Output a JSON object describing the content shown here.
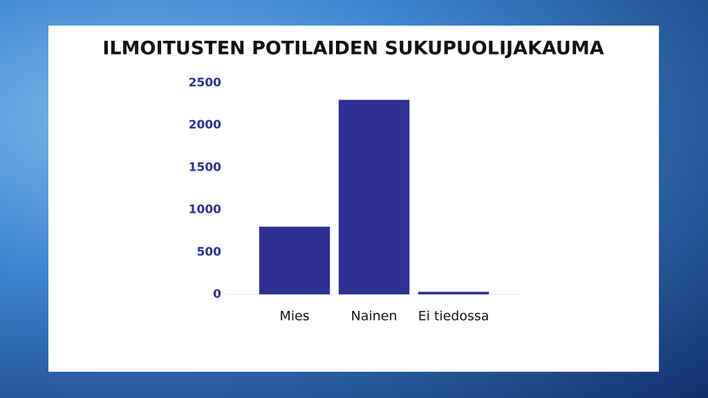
{
  "chart_data": {
    "type": "bar",
    "title": "ILMOITUSTEN POTILAIDEN SUKUPUOLIJAKAUMA",
    "categories": [
      "Mies",
      "Nainen",
      "Ei tiedossa"
    ],
    "values": [
      800,
      2300,
      30
    ],
    "color": "#2e3192",
    "ylim": [
      0,
      2500
    ],
    "yticks": [
      0,
      500,
      1000,
      1500,
      2000,
      2500
    ],
    "grid": false
  }
}
